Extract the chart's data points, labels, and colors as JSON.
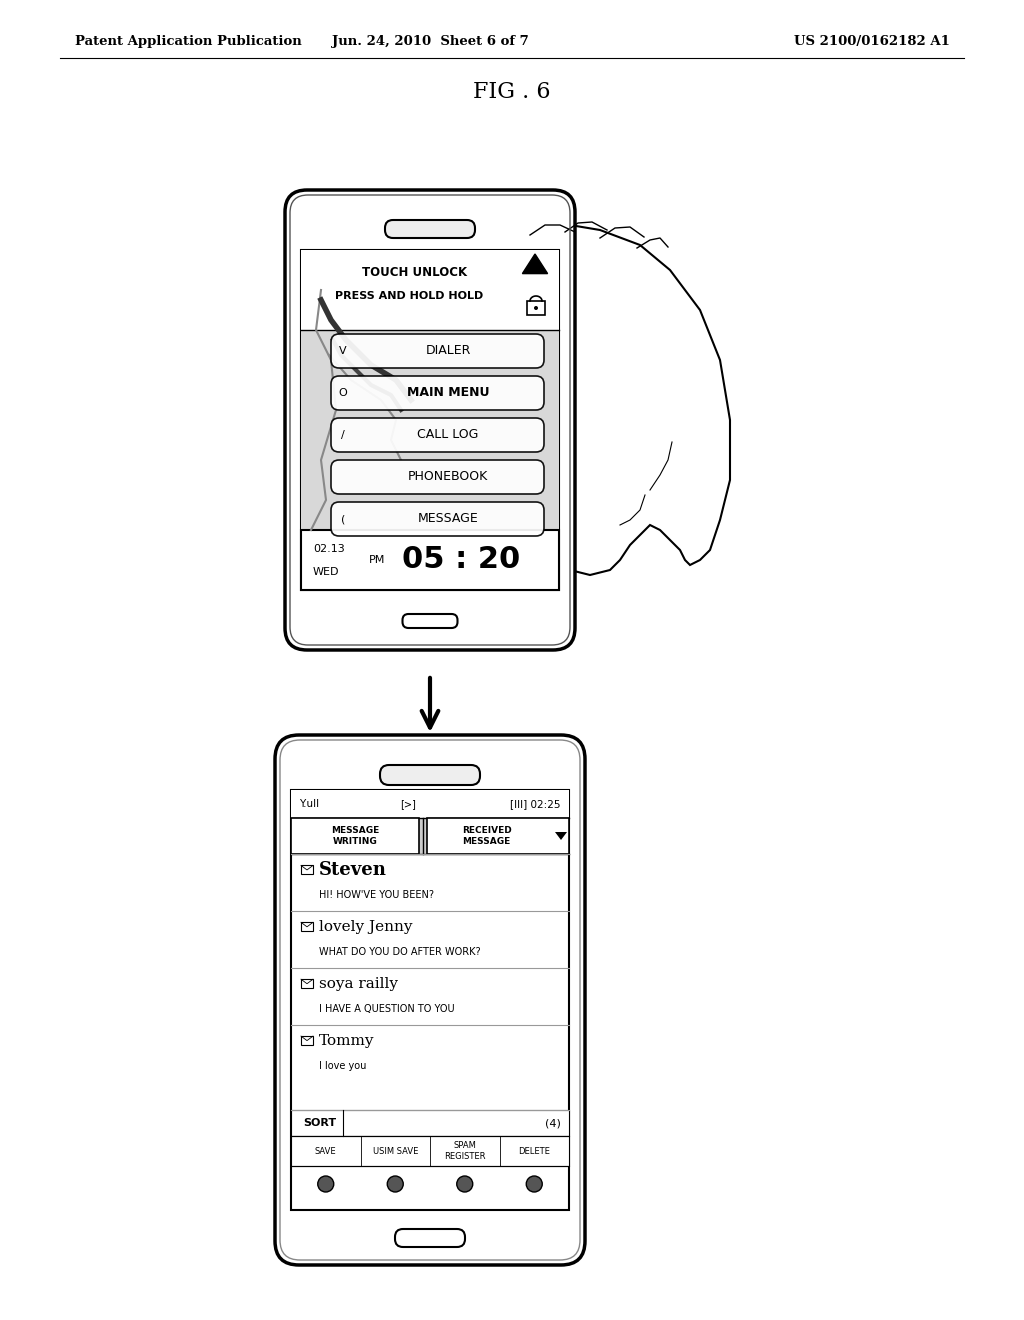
{
  "bg_color": "#ffffff",
  "header_left": "Patent Application Publication",
  "header_mid": "Jun. 24, 2010  Sheet 6 of 7",
  "header_right": "US 2100/0162182 A1",
  "fig_label": "FIG . 6",
  "menu_items": [
    "DIALER",
    "MAIN MENU",
    "CALL LOG",
    "PHONEBOOK",
    "MESSAGE"
  ],
  "menu_icons": [
    "V",
    "O",
    "/",
    "",
    "("
  ],
  "time_line1": "02.13",
  "time_line2": "WED",
  "time_main": "05 : 20",
  "time_pm": "PM",
  "touch_unlock": "TOUCH UNLOCK",
  "press_hold": "PRESS AND HOLD HOLD",
  "messages": [
    {
      "sender": "Steven",
      "bold": true,
      "preview": "HI! HOW'VE YOU BEEN?"
    },
    {
      "sender": "lovely Jenny",
      "bold": false,
      "preview": "WHAT DO YOU DO AFTER WORK?"
    },
    {
      "sender": "soya railly",
      "bold": false,
      "preview": "I HAVE A QUESTION TO YOU"
    },
    {
      "sender": "Tommy",
      "bold": false,
      "preview": "I love you"
    }
  ],
  "status_time": "02:25",
  "tab1": "MESSAGE\nWRITING",
  "tab2": "RECEIVED\nMESSAGE",
  "sort_label": "SORT",
  "sort_count": "(4)",
  "softkeys": [
    "SAVE",
    "USIM SAVE",
    "SPAM\nREGISTER",
    "DELETE"
  ]
}
